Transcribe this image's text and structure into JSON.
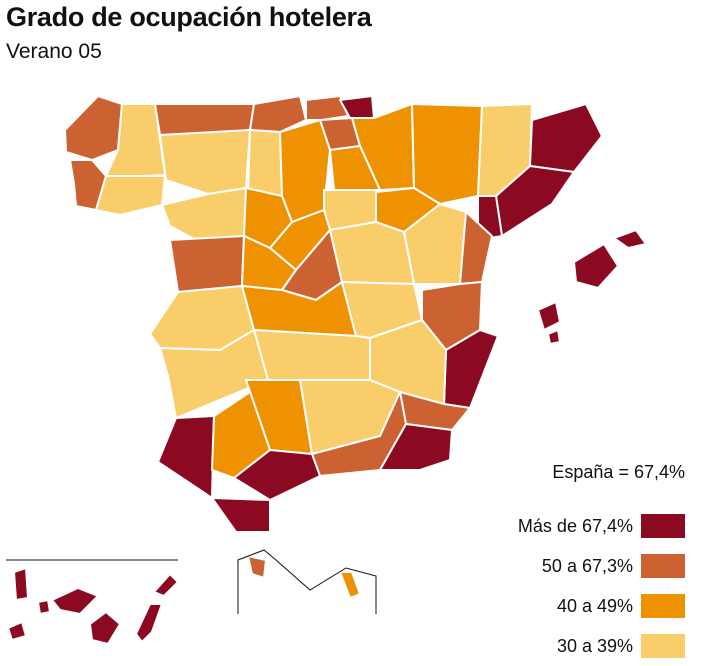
{
  "title": "Grado de ocupación hotelera",
  "subtitle": "Verano 05",
  "total": "España = 67,4%",
  "colors": {
    "c1": "#8b0a22",
    "c2": "#cc6232",
    "c3": "#ee9202",
    "c4": "#f8cd6a"
  },
  "legend": [
    {
      "label": "Más de 67,4%",
      "color": "#8b0a22"
    },
    {
      "label": "50 a 67,3%",
      "color": "#cc6232"
    },
    {
      "label": "40 a 49%",
      "color": "#ee9202"
    },
    {
      "label": "30 a 39%",
      "color": "#f8cd6a"
    }
  ]
}
